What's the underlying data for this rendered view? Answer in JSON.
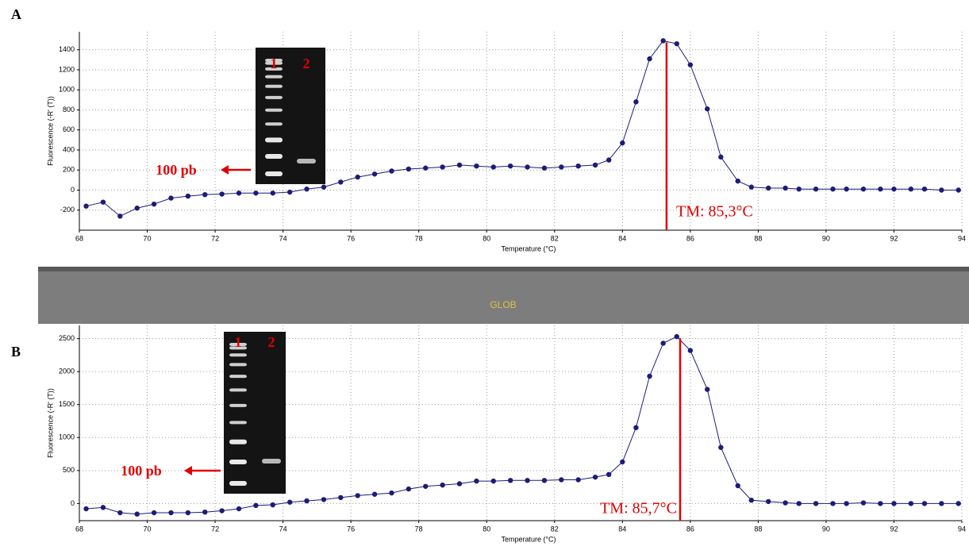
{
  "banner": "GLOB",
  "chart_data": [
    {
      "type": "line",
      "panel": "A",
      "xlabel": "Temperature (°C)",
      "ylabel": "Fluorescence (-R' (T))",
      "x": [
        68.2,
        68.7,
        69.2,
        69.7,
        70.2,
        70.7,
        71.2,
        71.7,
        72.2,
        72.7,
        73.2,
        73.7,
        74.2,
        74.7,
        75.2,
        75.7,
        76.2,
        76.7,
        77.2,
        77.7,
        78.2,
        78.7,
        79.2,
        79.7,
        80.2,
        80.7,
        81.2,
        81.7,
        82.2,
        82.7,
        83.2,
        83.6,
        84.0,
        84.4,
        84.8,
        85.2,
        85.6,
        86.0,
        86.5,
        86.9,
        87.4,
        87.8,
        88.3,
        88.8,
        89.2,
        89.7,
        90.2,
        90.6,
        91.1,
        91.6,
        92.0,
        92.5,
        92.9,
        93.4,
        93.9
      ],
      "values": [
        -160,
        -120,
        -260,
        -180,
        -140,
        -80,
        -60,
        -45,
        -40,
        -30,
        -30,
        -30,
        -20,
        10,
        30,
        80,
        130,
        160,
        190,
        210,
        220,
        230,
        250,
        240,
        230,
        240,
        230,
        220,
        230,
        240,
        250,
        300,
        470,
        880,
        1310,
        1490,
        1460,
        1250,
        810,
        330,
        90,
        30,
        20,
        20,
        10,
        10,
        10,
        10,
        10,
        10,
        10,
        10,
        10,
        0,
        0
      ],
      "color": "#1c1c78",
      "xlim": [
        68,
        94
      ],
      "xticks": [
        68,
        70,
        72,
        74,
        76,
        78,
        80,
        82,
        84,
        86,
        88,
        90,
        92,
        94
      ],
      "ylim": [
        -400,
        1580
      ],
      "yticks": [
        -200,
        0,
        200,
        400,
        600,
        800,
        1000,
        1200,
        1400
      ],
      "grid": true,
      "tm": {
        "value": 85.3,
        "label": "TM: 85,3°C"
      },
      "gel": {
        "lanes": [
          "1",
          "2"
        ],
        "marker_label": "100 pb"
      }
    },
    {
      "type": "line",
      "panel": "B",
      "xlabel": "Temperature (°C)",
      "ylabel": "Fluorescence (-R' (T))",
      "x": [
        68.2,
        68.7,
        69.2,
        69.7,
        70.2,
        70.7,
        71.2,
        71.7,
        72.2,
        72.7,
        73.2,
        73.7,
        74.2,
        74.7,
        75.2,
        75.7,
        76.2,
        76.7,
        77.2,
        77.7,
        78.2,
        78.7,
        79.2,
        79.7,
        80.2,
        80.7,
        81.2,
        81.7,
        82.2,
        82.7,
        83.2,
        83.6,
        84.0,
        84.4,
        84.8,
        85.2,
        85.6,
        86.0,
        86.5,
        86.9,
        87.4,
        87.8,
        88.3,
        88.8,
        89.2,
        89.7,
        90.2,
        90.6,
        91.1,
        91.6,
        92.0,
        92.5,
        92.9,
        93.4,
        93.9
      ],
      "values": [
        -80,
        -60,
        -140,
        -160,
        -140,
        -140,
        -140,
        -130,
        -110,
        -80,
        -30,
        -20,
        20,
        40,
        60,
        90,
        120,
        140,
        160,
        220,
        260,
        280,
        300,
        340,
        340,
        350,
        350,
        350,
        360,
        360,
        400,
        440,
        630,
        1150,
        1930,
        2430,
        2530,
        2320,
        1730,
        850,
        270,
        50,
        30,
        10,
        0,
        0,
        0,
        0,
        10,
        0,
        0,
        0,
        0,
        0,
        0
      ],
      "color": "#1c1c78",
      "xlim": [
        68,
        94
      ],
      "xticks": [
        68,
        70,
        72,
        74,
        76,
        78,
        80,
        82,
        84,
        86,
        88,
        90,
        92,
        94
      ],
      "ylim": [
        -260,
        2700
      ],
      "yticks": [
        0,
        500,
        1000,
        1500,
        2000,
        2500
      ],
      "grid": true,
      "tm": {
        "value": 85.7,
        "label": "TM: 85,7°C"
      },
      "gel": {
        "lanes": [
          "1",
          "2"
        ],
        "marker_label": "100 pb"
      }
    }
  ]
}
